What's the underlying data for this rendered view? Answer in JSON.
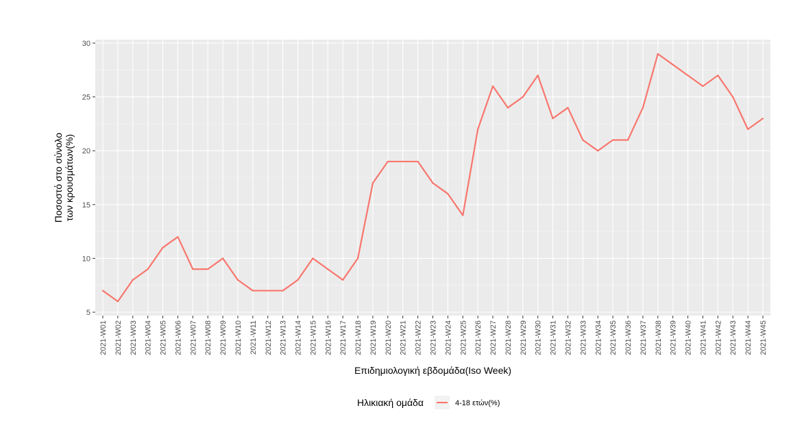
{
  "chart_data": {
    "type": "line",
    "title": "",
    "xlabel": "Επιδημιολογική εβδομάδα(Iso Week)",
    "ylabel_lines": [
      "Ποσοστό στο σύνολο",
      "των κρουσμάτων(%)"
    ],
    "ylim": [
      5,
      30
    ],
    "yticks": [
      5,
      10,
      15,
      20,
      25,
      30
    ],
    "grid": true,
    "legend": {
      "title": "Ηλικιακή ομάδα",
      "position": "bottom"
    },
    "categories": [
      "2021-W01",
      "2021-W02",
      "2021-W03",
      "2021-W04",
      "2021-W05",
      "2021-W06",
      "2021-W07",
      "2021-W08",
      "2021-W09",
      "2021-W10",
      "2021-W11",
      "2021-W12",
      "2021-W13",
      "2021-W14",
      "2021-W15",
      "2021-W16",
      "2021-W17",
      "2021-W18",
      "2021-W19",
      "2021-W20",
      "2021-W21",
      "2021-W22",
      "2021-W23",
      "2021-W24",
      "2021-W25",
      "2021-W26",
      "2021-W27",
      "2021-W28",
      "2021-W29",
      "2021-W30",
      "2021-W31",
      "2021-W32",
      "2021-W33",
      "2021-W34",
      "2021-W35",
      "2021-W36",
      "2021-W37",
      "2021-W38",
      "2021-W39",
      "2021-W40",
      "2021-W41",
      "2021-W42",
      "2021-W43",
      "2021-W44",
      "2021-W45"
    ],
    "series": [
      {
        "name": "4-18 ετών(%)",
        "color": "#F8766D",
        "values": [
          7,
          6,
          8,
          9,
          11,
          12,
          9,
          9,
          10,
          8,
          7,
          7,
          7,
          8,
          10,
          9,
          8,
          10,
          17,
          19,
          19,
          19,
          17,
          16,
          14,
          22,
          26,
          24,
          25,
          27,
          23,
          24,
          21,
          20,
          21,
          21,
          24,
          29,
          28,
          27,
          26,
          27,
          25,
          22,
          23
        ]
      }
    ]
  }
}
